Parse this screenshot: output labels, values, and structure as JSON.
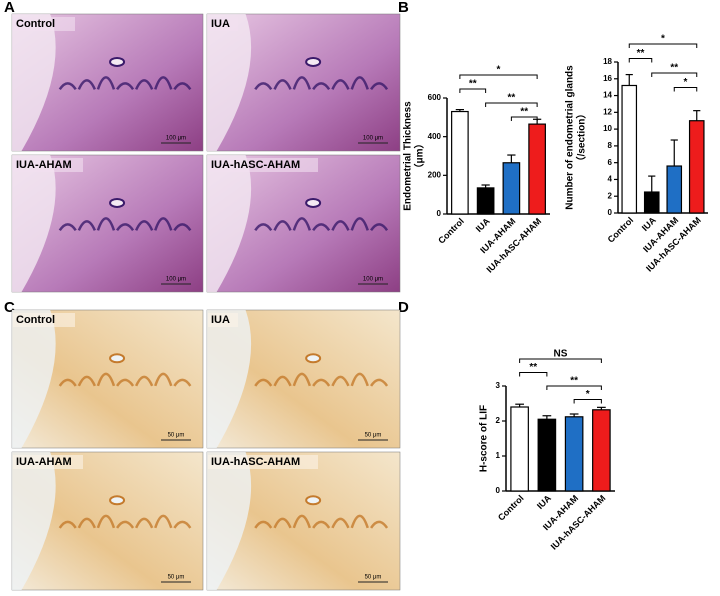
{
  "panel_labels": [
    "A",
    "B",
    "C",
    "D"
  ],
  "images_A": [
    {
      "title": "Control",
      "scale": "100 μm"
    },
    {
      "title": "IUA",
      "scale": "100 μm"
    },
    {
      "title": "IUA-AHAM",
      "scale": "100 μm"
    },
    {
      "title": "IUA-hASC-AHAM",
      "scale": "100 μm"
    }
  ],
  "images_C": [
    {
      "title": "Control",
      "scale": "50 μm"
    },
    {
      "title": "IUA",
      "scale": "50 μm"
    },
    {
      "title": "IUA-AHAM",
      "scale": "50 μm"
    },
    {
      "title": "IUA-hASC-AHAM",
      "scale": "50 μm"
    }
  ],
  "chart_data": [
    {
      "type": "bar",
      "y_label": [
        "Endometrial Thickness",
        "（μm）"
      ],
      "categories": [
        "Control",
        "IUA",
        "IUA-AHAM",
        "IUA-hASC-AHAM"
      ],
      "values": [
        530,
        135,
        265,
        465
      ],
      "errors": [
        10,
        15,
        40,
        25
      ],
      "colors": [
        "#ffffff",
        "#000000",
        "#1f6fc5",
        "#ee1c1c"
      ],
      "ylim": [
        0,
        600
      ],
      "yticks": [
        0,
        200,
        400,
        600
      ],
      "comparisons": [
        {
          "from": 0,
          "to": 3,
          "label": "*"
        },
        {
          "from": 0,
          "to": 1,
          "label": "**"
        },
        {
          "from": 1,
          "to": 3,
          "label": "**"
        },
        {
          "from": 2,
          "to": 3,
          "label": "**"
        }
      ]
    },
    {
      "type": "bar",
      "y_label": [
        "Number of endometrial glands",
        "（/section）"
      ],
      "categories": [
        "Control",
        "IUA",
        "IUA-AHAM",
        "IUA-hASC-AHAM"
      ],
      "values": [
        15.2,
        2.5,
        5.6,
        11.0
      ],
      "errors": [
        1.3,
        1.9,
        3.1,
        1.2
      ],
      "colors": [
        "#ffffff",
        "#000000",
        "#1f6fc5",
        "#ee1c1c"
      ],
      "ylim": [
        0,
        18
      ],
      "yticks": [
        0,
        2,
        4,
        6,
        8,
        10,
        12,
        14,
        16,
        18
      ],
      "comparisons": [
        {
          "from": 0,
          "to": 3,
          "label": "*"
        },
        {
          "from": 0,
          "to": 1,
          "label": "**"
        },
        {
          "from": 1,
          "to": 3,
          "label": "**"
        },
        {
          "from": 2,
          "to": 3,
          "label": "*"
        }
      ]
    },
    {
      "type": "bar",
      "y_label": [
        "H-score of LIF"
      ],
      "categories": [
        "Control",
        "IUA",
        "IUA-AHAM",
        "IUA-hASC-AHAM"
      ],
      "values": [
        2.4,
        2.05,
        2.12,
        2.32
      ],
      "errors": [
        0.08,
        0.1,
        0.08,
        0.07
      ],
      "colors": [
        "#ffffff",
        "#000000",
        "#1f6fc5",
        "#ee1c1c"
      ],
      "ylim": [
        0,
        3
      ],
      "yticks": [
        0,
        1,
        2,
        3
      ],
      "comparisons": [
        {
          "from": 0,
          "to": 3,
          "label": "NS"
        },
        {
          "from": 0,
          "to": 1,
          "label": "**"
        },
        {
          "from": 1,
          "to": 3,
          "label": "**"
        },
        {
          "from": 2,
          "to": 3,
          "label": "*"
        }
      ]
    }
  ]
}
